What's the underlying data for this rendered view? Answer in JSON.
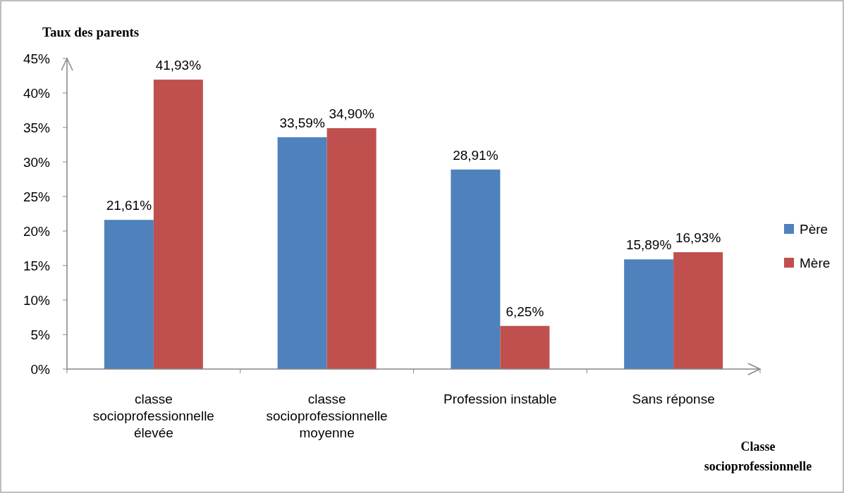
{
  "chart_data": {
    "type": "bar",
    "title": "Taux des parents",
    "xlabel": "Classe socioprofessionnelle",
    "categories": [
      "classe socioprofessionnelle élevée",
      "classe socioprofessionnelle moyenne",
      "Profession instable",
      "Sans réponse"
    ],
    "series": [
      {
        "name": "Père",
        "color": "#4f81bd",
        "values": [
          21.61,
          33.59,
          28.91,
          15.89
        ],
        "value_labels": [
          "21,61%",
          "33,59%",
          "28,91%",
          "15,89%"
        ]
      },
      {
        "name": "Mère",
        "color": "#c0504d",
        "values": [
          41.93,
          34.9,
          6.25,
          16.93
        ],
        "value_labels": [
          "41,93%",
          "34,90%",
          "6,25%",
          "16,93%"
        ]
      }
    ],
    "ylim": [
      0,
      45
    ],
    "yticks": [
      {
        "value": 0,
        "label": "0%"
      },
      {
        "value": 5,
        "label": "5%"
      },
      {
        "value": 10,
        "label": "10%"
      },
      {
        "value": 15,
        "label": "15%"
      },
      {
        "value": 20,
        "label": "20%"
      },
      {
        "value": 25,
        "label": "25%"
      },
      {
        "value": 30,
        "label": "30%"
      },
      {
        "value": 35,
        "label": "35%"
      },
      {
        "value": 40,
        "label": "40%"
      },
      {
        "value": 45,
        "label": "45%"
      }
    ],
    "grid": false,
    "legend": "right"
  }
}
